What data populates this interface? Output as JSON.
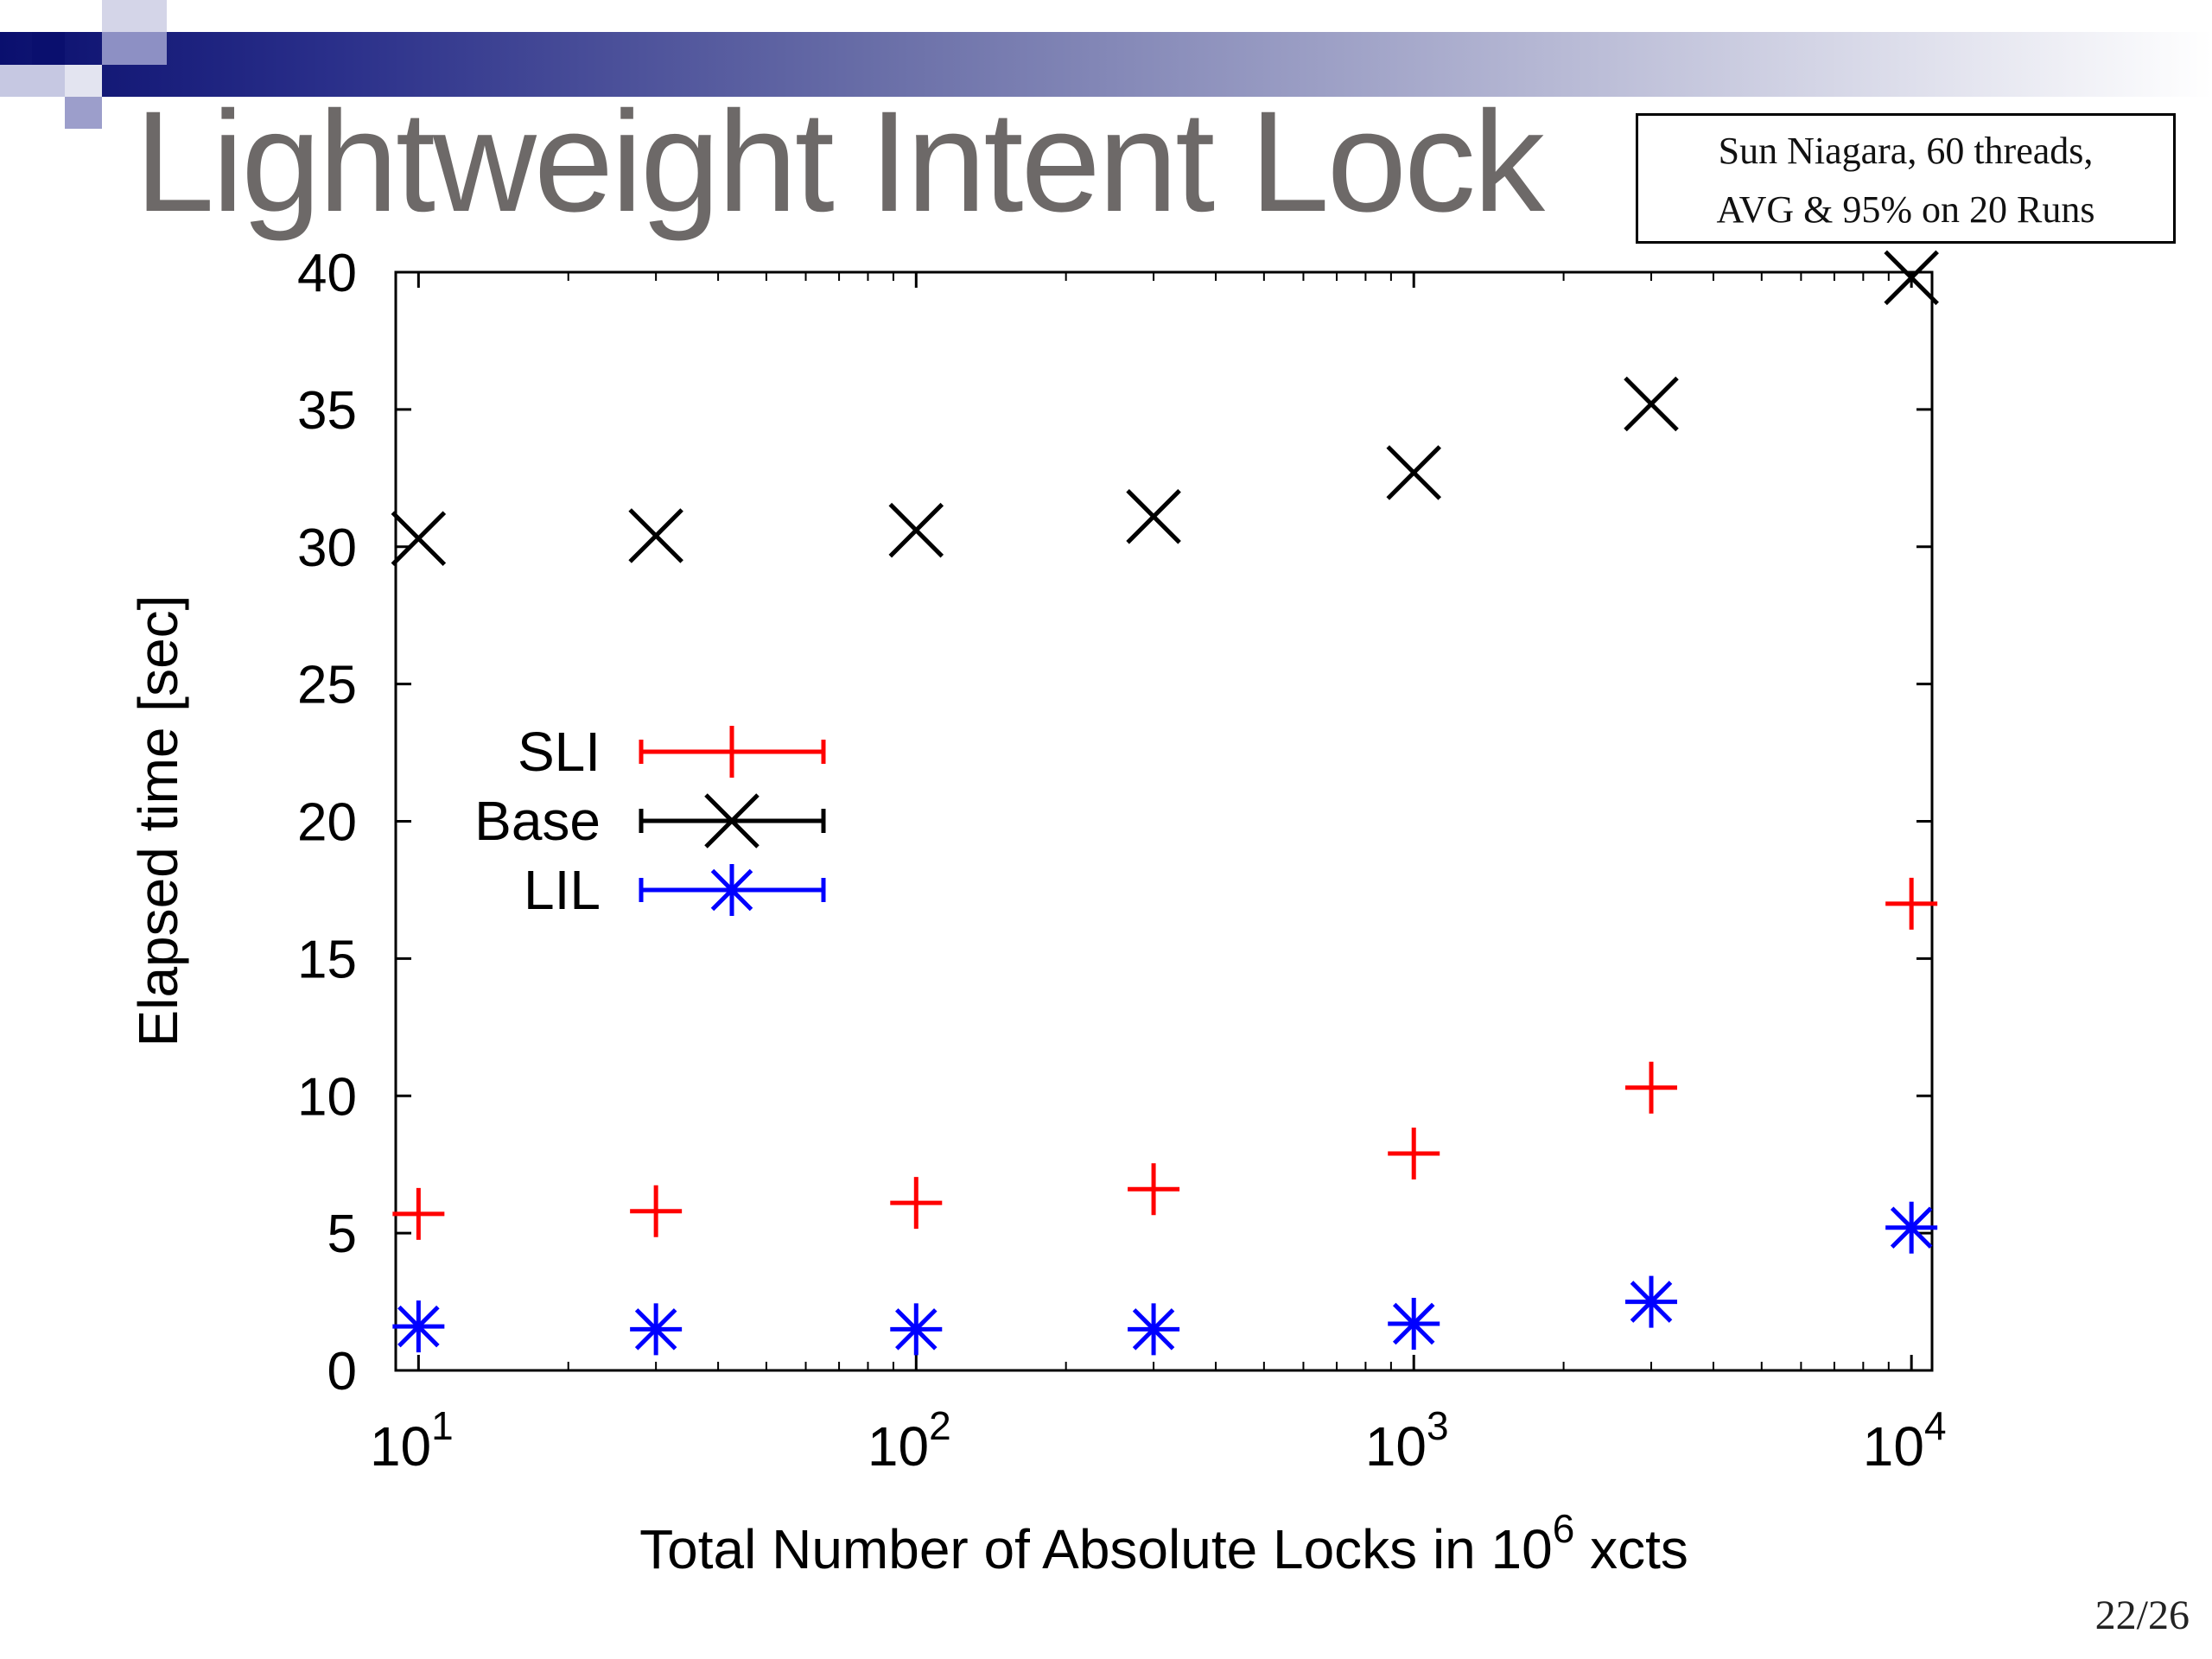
{
  "slide": {
    "title": "Lightweight Intent Lock",
    "note_lines": [
      "Sun Niagara, 60 threads,",
      "AVG & 95% on 20 Runs"
    ],
    "page_number": "22/26"
  },
  "chart_data": {
    "type": "scatter",
    "xscale": "log",
    "xlim": [
      9,
      11000
    ],
    "ylim": [
      0,
      40
    ],
    "xlabel": "Total Number of Absolute Locks in 10",
    "xlabel_sup": "6",
    "xlabel_suffix": " xcts",
    "ylabel": "Elapsed time [sec]",
    "xticks": [
      {
        "value": 10,
        "base": "10",
        "exp": "1"
      },
      {
        "value": 100,
        "base": "10",
        "exp": "2"
      },
      {
        "value": 1000,
        "base": "10",
        "exp": "3"
      },
      {
        "value": 10000,
        "base": "10",
        "exp": "4"
      }
    ],
    "yticks": [
      0,
      5,
      10,
      15,
      20,
      25,
      30,
      35,
      40
    ],
    "legend_position": "middle-left",
    "grid": false,
    "x": [
      10,
      30,
      100,
      300,
      1000,
      3000,
      10000
    ],
    "series": [
      {
        "name": "SLI",
        "color": "#ff0000",
        "marker": "plus",
        "values": [
          5.7,
          5.8,
          6.1,
          6.6,
          7.9,
          10.3,
          17.0
        ]
      },
      {
        "name": "Base",
        "color": "#000000",
        "marker": "x",
        "values": [
          30.3,
          30.4,
          30.6,
          31.1,
          32.7,
          35.2,
          39.8
        ]
      },
      {
        "name": "LIL",
        "color": "#0000ff",
        "marker": "star",
        "values": [
          1.6,
          1.5,
          1.5,
          1.5,
          1.7,
          2.5,
          5.2
        ]
      }
    ]
  }
}
